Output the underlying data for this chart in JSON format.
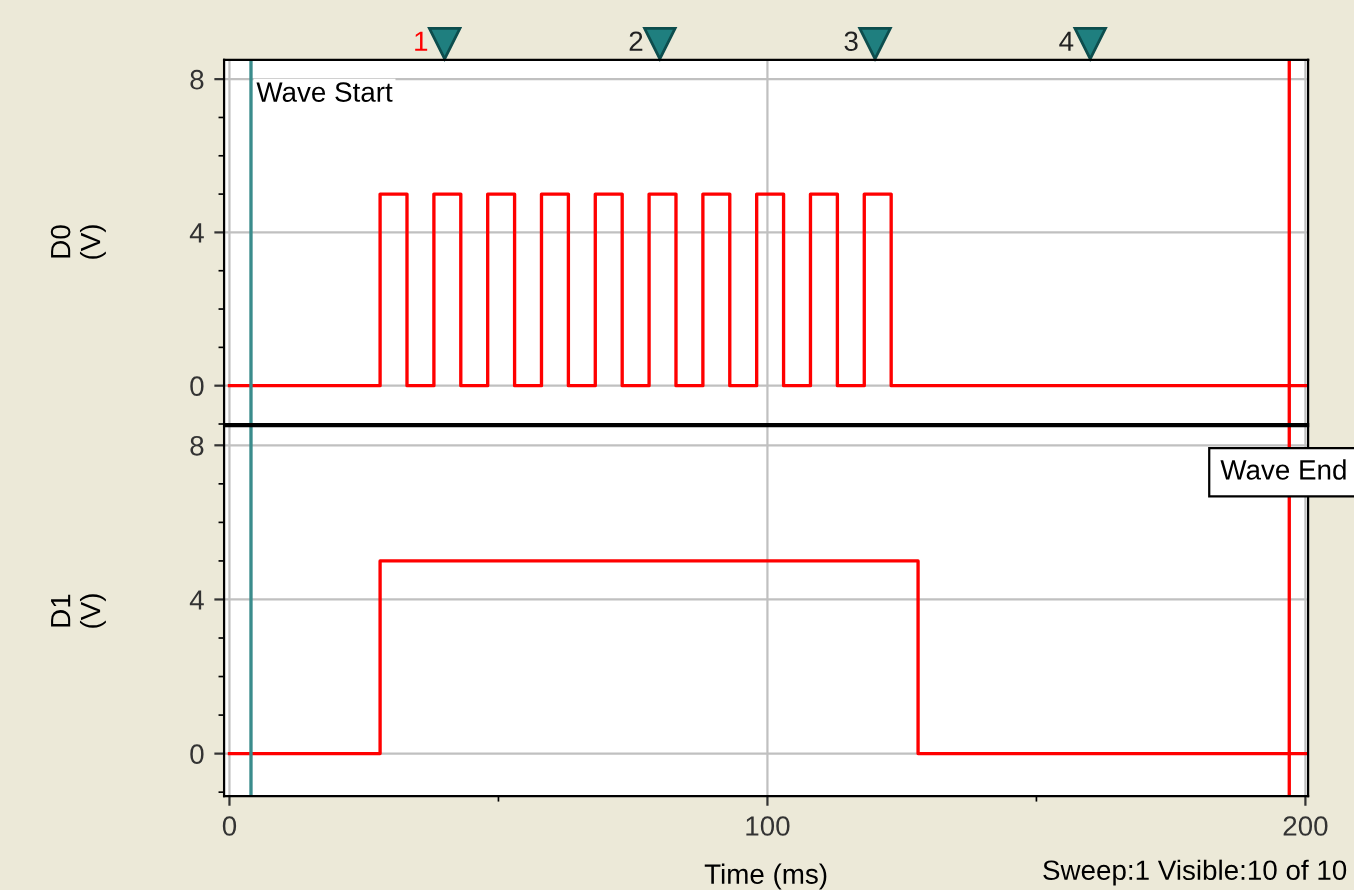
{
  "chart_data": [
    {
      "type": "step",
      "ylabel": "D0\n(V)",
      "x": [
        0,
        28,
        33,
        38,
        43,
        48,
        53,
        58,
        63,
        68,
        73,
        78,
        83,
        88,
        93,
        98,
        103,
        108,
        113,
        118,
        123,
        200
      ],
      "series": [
        {
          "color": "#ff0000",
          "values": [
            0,
            5,
            0,
            5,
            0,
            5,
            0,
            5,
            0,
            5,
            0,
            5,
            0,
            5,
            0,
            5,
            0,
            5,
            0,
            5,
            0,
            0
          ]
        }
      ],
      "xlim": [
        -1,
        200.5
      ],
      "ylim": [
        -1,
        8.5
      ],
      "xticks": [
        0,
        100,
        200
      ],
      "yticks": [
        0,
        4,
        8
      ],
      "grid": true,
      "tick_labels": "y",
      "ref_lines": [
        {
          "axis": "x",
          "value": 4,
          "label": "Wave Start",
          "color": "#3a8c8c"
        },
        {
          "axis": "x",
          "value": 197,
          "color": "#ff0000"
        }
      ],
      "annotations": [
        {
          "text": "1",
          "x": 40
        },
        {
          "text": "2",
          "x": 80
        },
        {
          "text": "3",
          "x": 120
        },
        {
          "text": "4",
          "x": 160
        }
      ]
    },
    {
      "type": "step",
      "ylabel": "D1\n(V)",
      "xlabel": "Time (ms)",
      "x": [
        0,
        28,
        128,
        200
      ],
      "series": [
        {
          "color": "#ff0000",
          "values": [
            0,
            5,
            0,
            0
          ]
        }
      ],
      "xlim": [
        -1,
        200.5
      ],
      "ylim": [
        -1.1,
        8.5
      ],
      "xticks": [
        0,
        100,
        200
      ],
      "yticks": [
        0,
        4,
        8
      ],
      "grid": true,
      "ref_lines": [
        {
          "axis": "x",
          "value": 4,
          "color": "#3a8c8c"
        },
        {
          "axis": "x",
          "value": 197,
          "label": "Wave End",
          "color": "#ff0000"
        }
      ],
      "annotations": [
        "Sweep:1 Visible:10 of 10"
      ]
    }
  ]
}
